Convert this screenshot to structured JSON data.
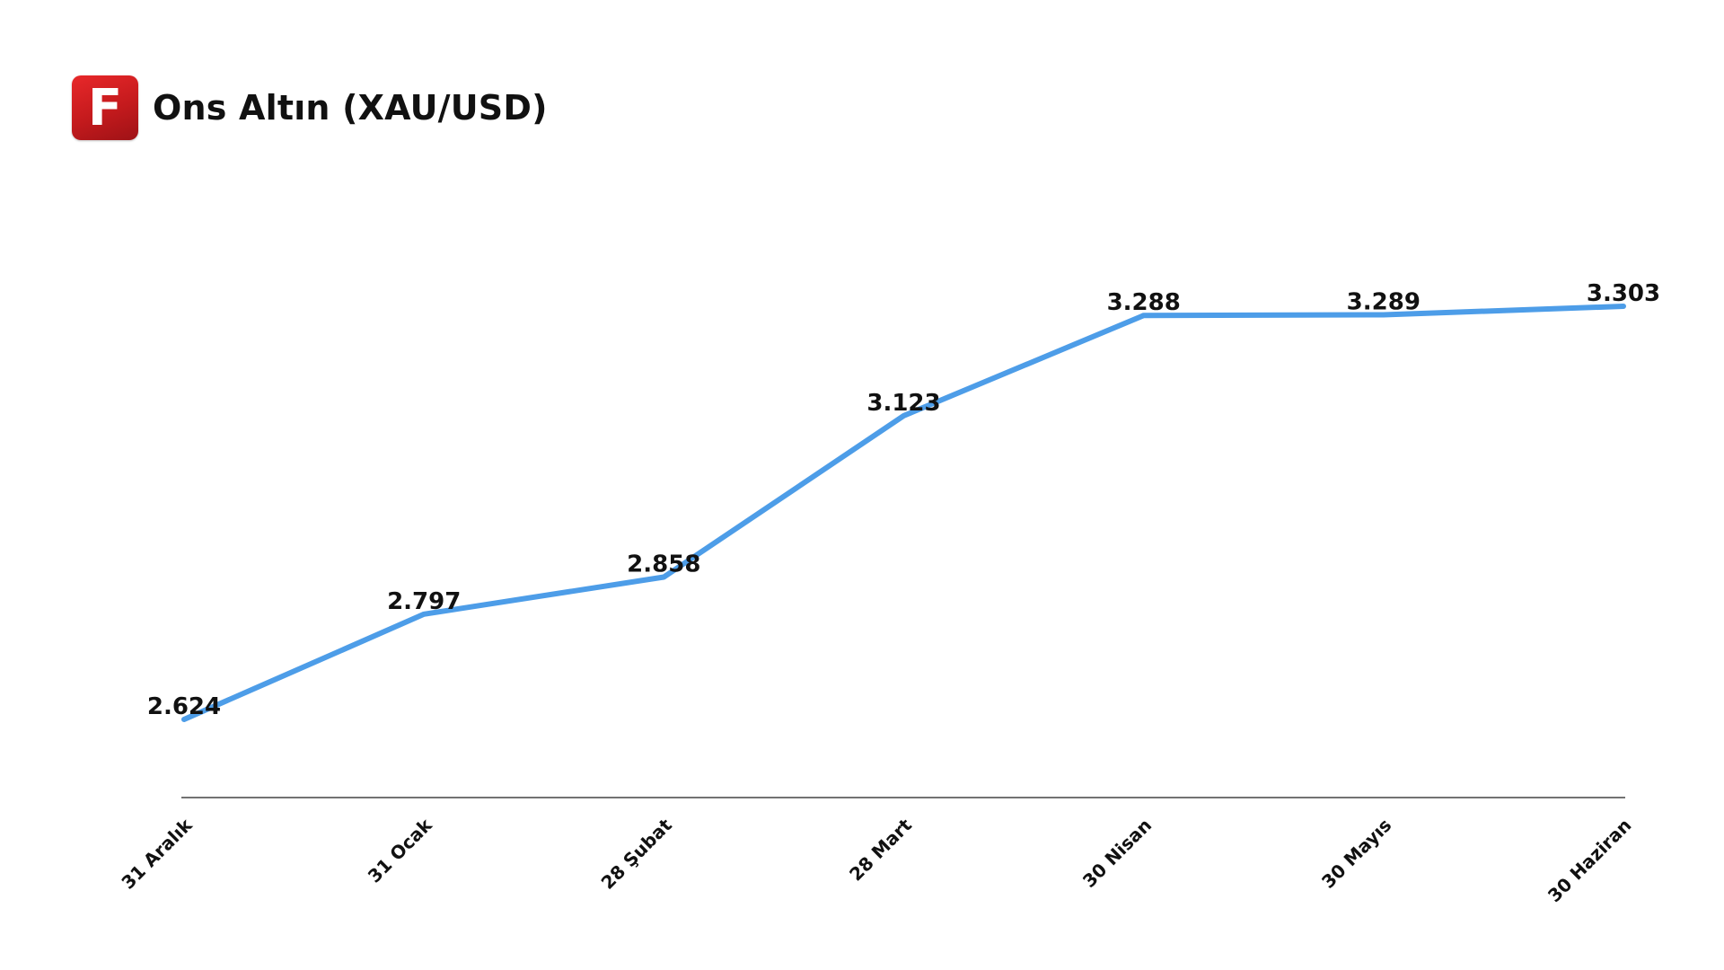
{
  "header": {
    "logo_letter": "F",
    "title": "Ons Altın (XAU/USD)"
  },
  "chart_data": {
    "type": "line",
    "title": "Ons Altın (XAU/USD)",
    "xlabel": "",
    "ylabel": "",
    "categories": [
      "31 Aralık",
      "31 Ocak",
      "28 Şubat",
      "28 Mart",
      "30 Nisan",
      "30 Mayıs",
      "30 Haziran"
    ],
    "series": [
      {
        "values": [
          2624,
          2797,
          2858,
          3123,
          3288,
          3289,
          3303
        ],
        "labels": [
          "2.624",
          "2.797",
          "2.858",
          "3.123",
          "3.288",
          "3.289",
          "3.303"
        ],
        "color": "#4d9de8"
      }
    ],
    "ylim": [
      2500,
      3400
    ],
    "grid": false,
    "legend": "none"
  },
  "colors": {
    "line": "#4d9de8",
    "axis": "#444444",
    "logo": "#d21f22",
    "text": "#111111"
  }
}
